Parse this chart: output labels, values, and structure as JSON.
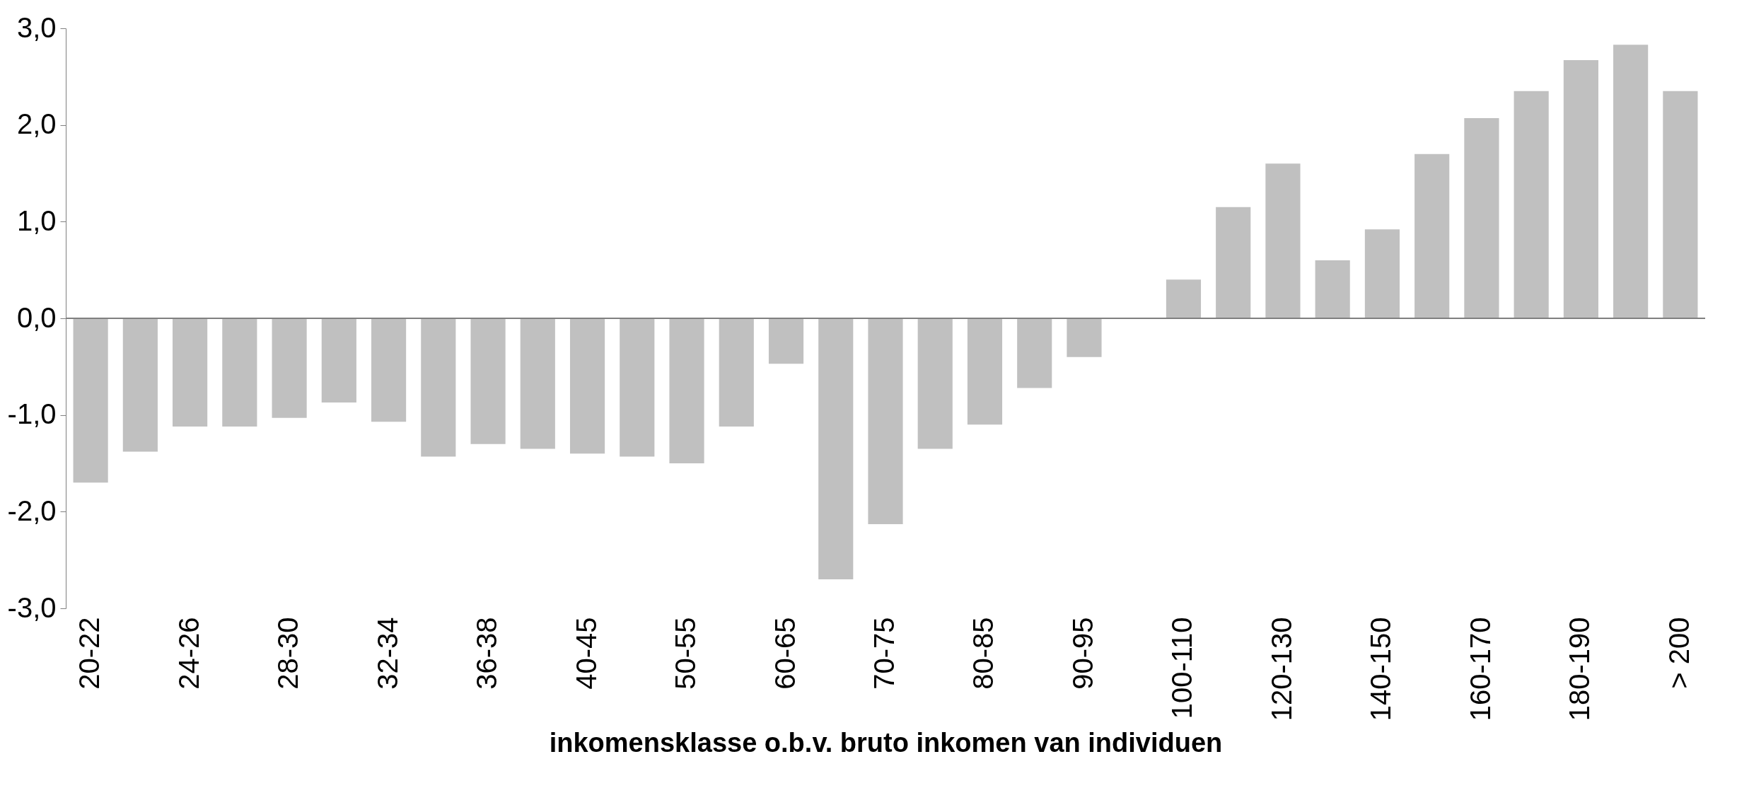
{
  "chart_data": {
    "type": "bar",
    "xlabel": "inkomensklasse o.b.v. bruto inkomen van individuen",
    "categories": [
      "20-22",
      null,
      "24-26",
      null,
      "28-30",
      null,
      "32-34",
      null,
      "36-38",
      null,
      "40-45",
      null,
      "50-55",
      null,
      "60-65",
      null,
      "70-75",
      null,
      "80-85",
      null,
      "90-95",
      null,
      "100-110",
      null,
      "120-130",
      null,
      "140-150",
      null,
      "160-170",
      null,
      "180-190",
      null,
      "> 200"
    ],
    "values": [
      -1.7,
      -1.38,
      -1.12,
      -1.12,
      -1.03,
      -0.87,
      -1.07,
      -1.43,
      -1.3,
      -1.35,
      -1.4,
      -1.43,
      -1.5,
      -1.12,
      -0.47,
      -2.7,
      -2.13,
      -1.35,
      -1.1,
      -0.72,
      -0.4,
      null,
      0.4,
      1.15,
      1.6,
      0.6,
      0.92,
      1.7,
      2.07,
      2.35,
      2.67,
      2.83,
      2.35
    ],
    "color": "#c0c0c0",
    "ylim": [
      -3,
      3
    ],
    "yticks": [
      {
        "value": -3,
        "label": "-3,0"
      },
      {
        "value": -2,
        "label": "-2,0"
      },
      {
        "value": -1,
        "label": "-1,0"
      },
      {
        "value": 0,
        "label": "0,0"
      },
      {
        "value": 1,
        "label": "1,0"
      },
      {
        "value": 2,
        "label": "2,0"
      },
      {
        "value": 3,
        "label": "3,0"
      }
    ],
    "ref_lines": [
      {
        "axis": "y",
        "value": 0,
        "color": "#808080"
      }
    ]
  }
}
